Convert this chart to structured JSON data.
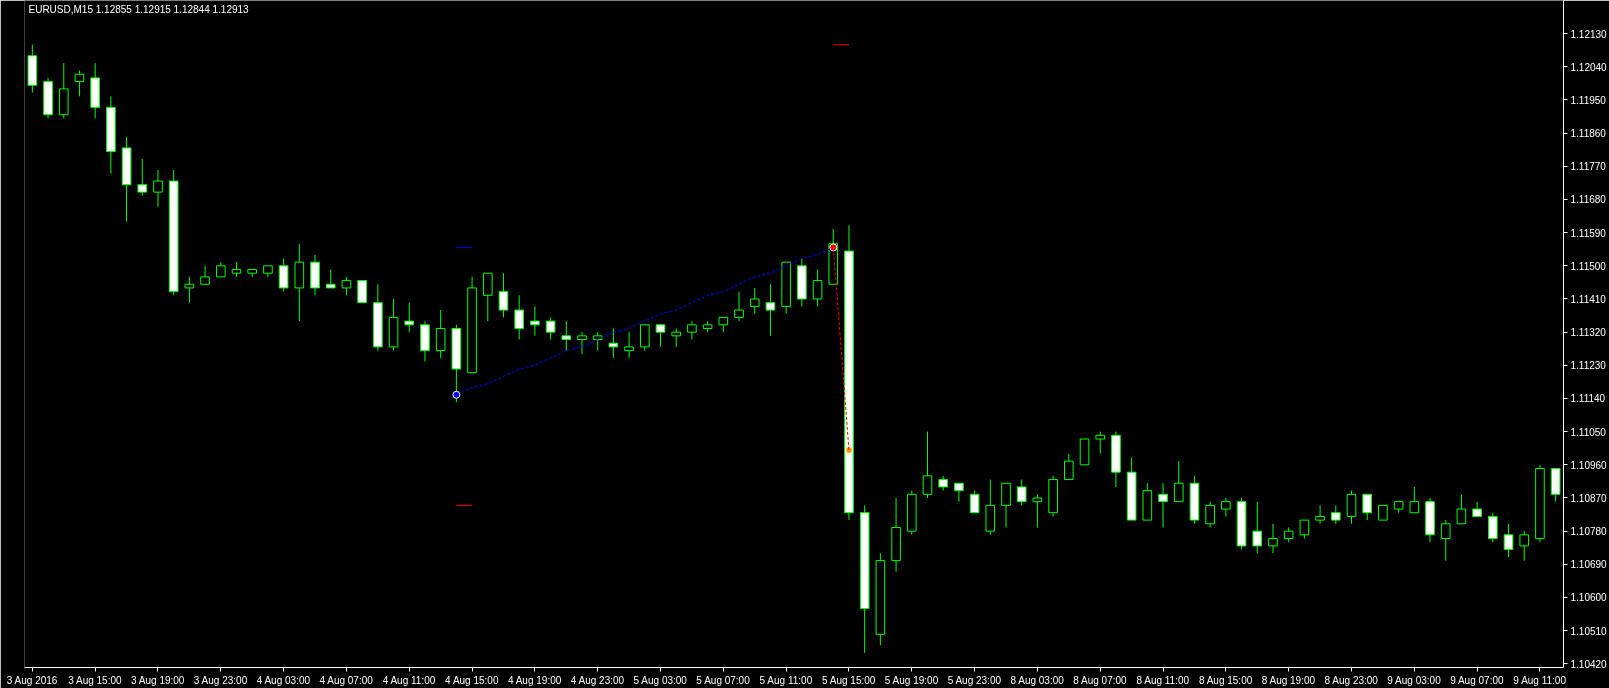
{
  "chart_data": {
    "type": "candlestick",
    "title": "EURUSD,M15 1.12855 1.12915 1.12844 1.12913",
    "categories": [
      "3 Aug 2016",
      null,
      null,
      null,
      "3 Aug 15:00",
      null,
      null,
      null,
      "3 Aug 19:00",
      null,
      null,
      null,
      "3 Aug 23:00",
      null,
      null,
      null,
      "4 Aug 03:00",
      null,
      null,
      null,
      "4 Aug 07:00",
      null,
      null,
      null,
      "4 Aug 11:00",
      null,
      null,
      null,
      "4 Aug 15:00",
      null,
      null,
      null,
      "4 Aug 19:00",
      null,
      null,
      null,
      "4 Aug 23:00",
      null,
      null,
      null,
      "5 Aug 03:00",
      null,
      null,
      null,
      "5 Aug 07:00",
      null,
      null,
      null,
      "5 Aug 11:00",
      null,
      null,
      null,
      "5 Aug 15:00",
      null,
      null,
      null,
      "5 Aug 19:00",
      null,
      null,
      null,
      "5 Aug 23:00",
      null,
      null,
      null,
      "8 Aug 03:00",
      null,
      null,
      null,
      "8 Aug 07:00",
      null,
      null,
      null,
      "8 Aug 11:00",
      null,
      null,
      null,
      "8 Aug 15:00",
      null,
      null,
      null,
      "8 Aug 19:00",
      null,
      null,
      null,
      "8 Aug 23:00",
      null,
      null,
      null,
      "9 Aug 03:00",
      null,
      null,
      null,
      "9 Aug 07:00",
      null,
      null,
      null,
      "9 Aug 11:00",
      null
    ],
    "ohlc": [
      [
        1.1207,
        1.121,
        1.1197,
        1.1199
      ],
      [
        1.12,
        1.1201,
        1.119,
        1.1191
      ],
      [
        1.1191,
        1.1205,
        1.119,
        1.1198
      ],
      [
        1.12,
        1.1203,
        1.1196,
        1.1202
      ],
      [
        1.1201,
        1.1205,
        1.119,
        1.1193
      ],
      [
        1.1193,
        1.1196,
        1.1175,
        1.1181
      ],
      [
        1.1182,
        1.1185,
        1.1162,
        1.1172
      ],
      [
        1.1172,
        1.1179,
        1.1169,
        1.117
      ],
      [
        1.117,
        1.1176,
        1.1166,
        1.1173
      ],
      [
        1.1173,
        1.1176,
        1.1142,
        1.1143
      ],
      [
        1.1144,
        1.1147,
        1.114,
        1.1145
      ],
      [
        1.1145,
        1.115,
        1.1145,
        1.1147
      ],
      [
        1.1147,
        1.1151,
        1.1147,
        1.115
      ],
      [
        1.1148,
        1.1151,
        1.1147,
        1.1149
      ],
      [
        1.1148,
        1.1149,
        1.1147,
        1.1149
      ],
      [
        1.1148,
        1.115,
        1.1147,
        1.115
      ],
      [
        1.115,
        1.1152,
        1.1143,
        1.1144
      ],
      [
        1.1144,
        1.1156,
        1.1135,
        1.1151
      ],
      [
        1.1151,
        1.1153,
        1.1142,
        1.1144
      ],
      [
        1.1145,
        1.1149,
        1.1144,
        1.1144
      ],
      [
        1.1144,
        1.1147,
        1.1142,
        1.1146
      ],
      [
        1.1146,
        1.1146,
        1.114,
        1.114
      ],
      [
        1.114,
        1.1145,
        1.1127,
        1.1128
      ],
      [
        1.1128,
        1.1141,
        1.1127,
        1.1136
      ],
      [
        1.1135,
        1.114,
        1.1132,
        1.1134
      ],
      [
        1.1134,
        1.1135,
        1.1124,
        1.1127
      ],
      [
        1.1127,
        1.1138,
        1.1125,
        1.1133
      ],
      [
        1.1133,
        1.1134,
        1.1113,
        1.1122
      ],
      [
        1.1121,
        1.1147,
        1.1121,
        1.1144
      ],
      [
        1.1142,
        1.1148,
        1.1135,
        1.1148
      ],
      [
        1.1143,
        1.1148,
        1.1136,
        1.1138
      ],
      [
        1.1138,
        1.1142,
        1.113,
        1.1133
      ],
      [
        1.1135,
        1.1139,
        1.1131,
        1.1134
      ],
      [
        1.1135,
        1.1136,
        1.113,
        1.1132
      ],
      [
        1.1131,
        1.1135,
        1.1127,
        1.113
      ],
      [
        1.113,
        1.1132,
        1.1126,
        1.1131
      ],
      [
        1.113,
        1.1132,
        1.1127,
        1.1131
      ],
      [
        1.1129,
        1.1133,
        1.1125,
        1.1128
      ],
      [
        1.1127,
        1.1132,
        1.1125,
        1.1128
      ],
      [
        1.1128,
        1.1134,
        1.1127,
        1.1134
      ],
      [
        1.1134,
        1.1134,
        1.1128,
        1.1132
      ],
      [
        1.1131,
        1.1133,
        1.1128,
        1.1132
      ],
      [
        1.1132,
        1.1135,
        1.113,
        1.1134
      ],
      [
        1.1133,
        1.1135,
        1.1132,
        1.1134
      ],
      [
        1.1134,
        1.1136,
        1.1132,
        1.1136
      ],
      [
        1.1136,
        1.1143,
        1.1135,
        1.1138
      ],
      [
        1.1139,
        1.1144,
        1.1137,
        1.1141
      ],
      [
        1.114,
        1.1145,
        1.1131,
        1.1138
      ],
      [
        1.1139,
        1.1151,
        1.1137,
        1.1151
      ],
      [
        1.115,
        1.1152,
        1.1139,
        1.1141
      ],
      [
        1.1141,
        1.1149,
        1.1139,
        1.1146
      ],
      [
        1.1145,
        1.116,
        1.1145,
        1.1156
      ],
      [
        1.1154,
        1.1161,
        1.1081,
        1.1083
      ],
      [
        1.1083,
        1.1085,
        1.1045,
        1.1057
      ],
      [
        1.105,
        1.1072,
        1.1047,
        1.107
      ],
      [
        1.107,
        1.1087,
        1.1067,
        1.1079
      ],
      [
        1.1078,
        1.1089,
        1.1077,
        1.1088
      ],
      [
        1.1088,
        1.1105,
        1.1087,
        1.1093
      ],
      [
        1.1092,
        1.1093,
        1.1089,
        1.109
      ],
      [
        1.1091,
        1.1091,
        1.1086,
        1.1089
      ],
      [
        1.1088,
        1.1089,
        1.1083,
        1.1083
      ],
      [
        1.1078,
        1.1092,
        1.1077,
        1.1085
      ],
      [
        1.1085,
        1.1091,
        1.1079,
        1.1091
      ],
      [
        1.109,
        1.1092,
        1.1085,
        1.1086
      ],
      [
        1.1086,
        1.1088,
        1.1079,
        1.1087
      ],
      [
        1.1083,
        1.1093,
        1.1082,
        1.1092
      ],
      [
        1.1092,
        1.1099,
        1.1092,
        1.1097
      ],
      [
        1.1096,
        1.1103,
        1.1096,
        1.1103
      ],
      [
        1.1103,
        1.1105,
        1.1099,
        1.1104
      ],
      [
        1.1104,
        1.1105,
        1.109,
        1.1094
      ],
      [
        1.1094,
        1.1098,
        1.1081,
        1.1081
      ],
      [
        1.1081,
        1.1091,
        1.1081,
        1.1089
      ],
      [
        1.1088,
        1.1091,
        1.1079,
        1.1086
      ],
      [
        1.1086,
        1.1097,
        1.1086,
        1.1091
      ],
      [
        1.1091,
        1.1093,
        1.108,
        1.1081
      ],
      [
        1.108,
        1.1086,
        1.1079,
        1.1085
      ],
      [
        1.1084,
        1.1087,
        1.1082,
        1.1086
      ],
      [
        1.1086,
        1.1087,
        1.1073,
        1.1074
      ],
      [
        1.1078,
        1.1086,
        1.1072,
        1.1074
      ],
      [
        1.1074,
        1.108,
        1.1072,
        1.1076
      ],
      [
        1.1076,
        1.1079,
        1.1075,
        1.1078
      ],
      [
        1.1077,
        1.1081,
        1.1076,
        1.1081
      ],
      [
        1.1081,
        1.1085,
        1.108,
        1.1082
      ],
      [
        1.1083,
        1.1085,
        1.108,
        1.1081
      ],
      [
        1.1082,
        1.1089,
        1.108,
        1.1088
      ],
      [
        1.1088,
        1.1088,
        1.1081,
        1.1083
      ],
      [
        1.1081,
        1.1085,
        1.1081,
        1.1085
      ],
      [
        1.1084,
        1.1086,
        1.1083,
        1.1086
      ],
      [
        1.1083,
        1.109,
        1.1083,
        1.1086
      ],
      [
        1.1086,
        1.1087,
        1.1075,
        1.1077
      ],
      [
        1.1076,
        1.1081,
        1.107,
        1.108
      ],
      [
        1.108,
        1.1088,
        1.108,
        1.1084
      ],
      [
        1.1084,
        1.1086,
        1.1082,
        1.1082
      ],
      [
        1.1082,
        1.1083,
        1.1075,
        1.1076
      ],
      [
        1.1077,
        1.108,
        1.1071,
        1.1073
      ],
      [
        1.1074,
        1.1078,
        1.107,
        1.1077
      ],
      [
        1.1076,
        1.1096,
        1.1075,
        1.1095
      ],
      [
        1.1095,
        1.1095,
        1.1086,
        1.1088
      ]
    ],
    "color": "#00ff00",
    "colors": [
      "#ffffff",
      "#ffffff",
      "#000000",
      "#000000",
      "#ffffff",
      "#ffffff",
      "#ffffff",
      "#ffffff",
      "#000000",
      "#ffffff",
      "#000000",
      "#000000",
      "#000000",
      "#000000",
      "#000000",
      "#000000",
      "#ffffff",
      "#000000",
      "#ffffff",
      "#ffffff",
      "#000000",
      "#ffffff",
      "#ffffff",
      "#000000",
      "#ffffff",
      "#ffffff",
      "#000000",
      "#ffffff",
      "#000000",
      "#000000",
      "#ffffff",
      "#ffffff",
      "#ffffff",
      "#ffffff",
      "#ffffff",
      "#000000",
      "#000000",
      "#ffffff",
      "#000000",
      "#000000",
      "#ffffff",
      "#000000",
      "#000000",
      "#000000",
      "#000000",
      "#000000",
      "#000000",
      "#ffffff",
      "#000000",
      "#ffffff",
      "#000000",
      "#000000",
      "#ffffff",
      "#ffffff",
      "#000000",
      "#000000",
      "#000000",
      "#000000",
      "#ffffff",
      "#ffffff",
      "#ffffff",
      "#000000",
      "#000000",
      "#ffffff",
      "#000000",
      "#000000",
      "#000000",
      "#000000",
      "#000000",
      "#ffffff",
      "#ffffff",
      "#000000",
      "#ffffff",
      "#000000",
      "#ffffff",
      "#000000",
      "#000000",
      "#ffffff",
      "#ffffff",
      "#000000",
      "#000000",
      "#000000",
      "#000000",
      "#ffffff",
      "#000000",
      "#ffffff",
      "#000000",
      "#000000",
      "#000000",
      "#ffffff",
      "#000000",
      "#000000",
      "#ffffff",
      "#ffffff",
      "#ffffff",
      "#000000",
      "#000000",
      "#ffffff"
    ],
    "series": [
      {
        "type": "line",
        "color": "#0000ff",
        "line_style": "dashed",
        "values": [
          null,
          null,
          null,
          null,
          null,
          null,
          null,
          null,
          null,
          null,
          null,
          null,
          null,
          null,
          null,
          null,
          null,
          null,
          null,
          null,
          null,
          null,
          null,
          null,
          null,
          null,
          null,
          1.1115,
          1.1117,
          1.1118,
          1.112,
          1.1122,
          1.1123,
          1.1125,
          1.1127,
          1.1128,
          1.113,
          1.1132,
          1.1133,
          1.1135,
          1.1137,
          1.1138,
          1.114,
          1.1142,
          1.1143,
          1.1145,
          1.1147,
          1.1148,
          1.115,
          1.1152,
          1.1153,
          1.1155,
          null,
          null,
          null,
          null,
          null,
          null,
          null,
          null,
          null,
          null,
          null,
          null,
          null,
          null,
          null,
          null,
          null,
          null,
          null,
          null,
          null,
          null,
          null,
          null,
          null,
          null,
          null,
          null,
          null,
          null,
          null,
          null,
          null,
          null,
          null,
          null,
          null,
          null,
          null,
          null,
          null,
          null,
          null,
          null,
          null,
          null
        ]
      },
      {
        "type": "line",
        "color": "#ff0000",
        "line_style": "dashed",
        "values": [
          null,
          null,
          null,
          null,
          null,
          null,
          null,
          null,
          null,
          null,
          null,
          null,
          null,
          null,
          null,
          null,
          null,
          null,
          null,
          null,
          null,
          null,
          null,
          null,
          null,
          null,
          null,
          null,
          null,
          null,
          null,
          null,
          null,
          null,
          null,
          null,
          null,
          null,
          null,
          null,
          null,
          null,
          null,
          null,
          null,
          null,
          null,
          null,
          null,
          null,
          null,
          1.1155,
          1.11,
          null,
          null,
          null,
          null,
          null,
          null,
          null,
          null,
          null,
          null,
          null,
          null,
          null,
          null,
          null,
          null,
          null,
          null,
          null,
          null,
          null,
          null,
          null,
          null,
          null,
          null,
          null,
          null,
          null,
          null,
          null,
          null,
          null,
          null,
          null,
          null,
          null,
          null,
          null,
          null,
          null,
          null,
          null,
          null,
          null
        ]
      },
      {
        "type": "line",
        "color": "#0000ff",
        "values": [
          null,
          null,
          null,
          null,
          null,
          null,
          null,
          null,
          null,
          null,
          null,
          null,
          null,
          null,
          null,
          null,
          null,
          null,
          null,
          null,
          null,
          null,
          null,
          null,
          null,
          null,
          null,
          1.1155,
          1.1155,
          null,
          null,
          null,
          null,
          null,
          null,
          null,
          null,
          null,
          null,
          null,
          null,
          null,
          null,
          null,
          null,
          null,
          null,
          null,
          null,
          null,
          null,
          null,
          null,
          null,
          null,
          null,
          null,
          null,
          null,
          null,
          null,
          null,
          null,
          null,
          null,
          null,
          null,
          null,
          null,
          null,
          null,
          null,
          null,
          null,
          null,
          null,
          null,
          null,
          null,
          null,
          null,
          null,
          null,
          null,
          null,
          null,
          null,
          null,
          null,
          null,
          null,
          null,
          null,
          null,
          null,
          null,
          null,
          null
        ]
      },
      {
        "type": "line",
        "color": "#ff0000",
        "values": [
          null,
          null,
          null,
          null,
          null,
          null,
          null,
          null,
          null,
          null,
          null,
          null,
          null,
          null,
          null,
          null,
          null,
          null,
          null,
          null,
          null,
          null,
          null,
          null,
          null,
          null,
          null,
          1.1085,
          1.1085,
          null,
          null,
          null,
          null,
          null,
          null,
          null,
          null,
          null,
          null,
          null,
          null,
          null,
          null,
          null,
          null,
          null,
          null,
          null,
          null,
          null,
          null,
          null,
          null,
          null,
          null,
          null,
          null,
          null,
          null,
          null,
          null,
          null,
          null,
          null,
          null,
          null,
          null,
          null,
          null,
          null,
          null,
          null,
          null,
          null,
          null,
          null,
          null,
          null,
          null,
          null,
          null,
          null,
          null,
          null,
          null,
          null,
          null,
          null,
          null,
          null,
          null,
          null,
          null,
          null,
          null,
          null,
          null,
          null
        ]
      },
      {
        "type": "line",
        "color": "#ff0000",
        "values": [
          null,
          null,
          null,
          null,
          null,
          null,
          null,
          null,
          null,
          null,
          null,
          null,
          null,
          null,
          null,
          null,
          null,
          null,
          null,
          null,
          null,
          null,
          null,
          null,
          null,
          null,
          null,
          null,
          null,
          null,
          null,
          null,
          null,
          null,
          null,
          null,
          null,
          null,
          null,
          null,
          null,
          null,
          null,
          null,
          null,
          null,
          null,
          null,
          null,
          null,
          null,
          1.121,
          1.121,
          null,
          null,
          null,
          null,
          null,
          null,
          null,
          null,
          null,
          null,
          null,
          null,
          null,
          null,
          null,
          null,
          null,
          null,
          null,
          null,
          null,
          null,
          null,
          null,
          null,
          null,
          null,
          null,
          null,
          null,
          null,
          null,
          null,
          null,
          null,
          null,
          null,
          null,
          null,
          null,
          null,
          null,
          null,
          null,
          null
        ]
      },
      {
        "type": "scatter",
        "marker": "circle",
        "color": "#0000ff",
        "values": [
          null,
          null,
          null,
          null,
          null,
          null,
          null,
          null,
          null,
          null,
          null,
          null,
          null,
          null,
          null,
          null,
          null,
          null,
          null,
          null,
          null,
          null,
          null,
          null,
          null,
          null,
          null,
          1.1115,
          null,
          null,
          null,
          null,
          null,
          null,
          null,
          null,
          null,
          null,
          null,
          null,
          null,
          null,
          null,
          null,
          null,
          null,
          null,
          null,
          null,
          null,
          null,
          null,
          null,
          null,
          null,
          null,
          null,
          null,
          null,
          null,
          null,
          null,
          null,
          null,
          null,
          null,
          null,
          null,
          null,
          null,
          null,
          null,
          null,
          null,
          null,
          null,
          null,
          null,
          null,
          null,
          null,
          null,
          null,
          null,
          null,
          null,
          null,
          null,
          null,
          null,
          null,
          null,
          null,
          null,
          null,
          null,
          null,
          null
        ]
      },
      {
        "type": "scatter",
        "marker": "circle",
        "color": "#ff0000",
        "values": [
          null,
          null,
          null,
          null,
          null,
          null,
          null,
          null,
          null,
          null,
          null,
          null,
          null,
          null,
          null,
          null,
          null,
          null,
          null,
          null,
          null,
          null,
          null,
          null,
          null,
          null,
          null,
          null,
          null,
          null,
          null,
          null,
          null,
          null,
          null,
          null,
          null,
          null,
          null,
          null,
          null,
          null,
          null,
          null,
          null,
          null,
          null,
          null,
          null,
          null,
          null,
          1.1155,
          null,
          null,
          null,
          null,
          null,
          null,
          null,
          null,
          null,
          null,
          null,
          null,
          null,
          null,
          null,
          null,
          null,
          null,
          null,
          null,
          null,
          null,
          null,
          null,
          null,
          null,
          null,
          null,
          null,
          null,
          null,
          null,
          null,
          null,
          null,
          null,
          null,
          null,
          null,
          null,
          null,
          null,
          null,
          null,
          null,
          null
        ]
      },
      {
        "type": "scatter",
        "marker": "circle",
        "color": "#ff9900",
        "values": [
          null,
          null,
          null,
          null,
          null,
          null,
          null,
          null,
          null,
          null,
          null,
          null,
          null,
          null,
          null,
          null,
          null,
          null,
          null,
          null,
          null,
          null,
          null,
          null,
          null,
          null,
          null,
          null,
          null,
          null,
          null,
          null,
          null,
          null,
          null,
          null,
          null,
          null,
          null,
          null,
          null,
          null,
          null,
          null,
          null,
          null,
          null,
          null,
          null,
          null,
          null,
          null,
          1.11,
          null,
          null,
          null,
          null,
          null,
          null,
          null,
          null,
          null,
          null,
          null,
          null,
          null,
          null,
          null,
          null,
          null,
          null,
          null,
          null,
          null,
          null,
          null,
          null,
          null,
          null,
          null,
          null,
          null,
          null,
          null,
          null,
          null,
          null,
          null,
          null,
          null,
          null,
          null,
          null,
          null,
          null,
          null,
          null,
          null
        ]
      }
    ],
    "ylim": [
      1.1041,
      1.1222
    ],
    "yticks": [
      {
        "value": 1.1213,
        "label": "1.12130"
      },
      {
        "value": 1.1204,
        "label": "1.12040"
      },
      {
        "value": 1.1195,
        "label": "1.11950"
      },
      {
        "value": 1.1186,
        "label": "1.11860"
      },
      {
        "value": 1.1177,
        "label": "1.11770"
      },
      {
        "value": 1.1168,
        "label": "1.11680"
      },
      {
        "value": 1.1159,
        "label": "1.11590"
      },
      {
        "value": 1.115,
        "label": "1.11500"
      },
      {
        "value": 1.1141,
        "label": "1.11410"
      },
      {
        "value": 1.1132,
        "label": "1.11320"
      },
      {
        "value": 1.1123,
        "label": "1.11230"
      },
      {
        "value": 1.1114,
        "label": "1.11140"
      },
      {
        "value": 1.1105,
        "label": "1.11050"
      },
      {
        "value": 1.1096,
        "label": "1.10960"
      },
      {
        "value": 1.1087,
        "label": "1.10870"
      },
      {
        "value": 1.1078,
        "label": "1.10780"
      },
      {
        "value": 1.1069,
        "label": "1.10690"
      },
      {
        "value": 1.106,
        "label": "1.10600"
      },
      {
        "value": 1.1051,
        "label": "1.10510"
      },
      {
        "value": 1.1042,
        "label": "1.10420"
      }
    ]
  }
}
